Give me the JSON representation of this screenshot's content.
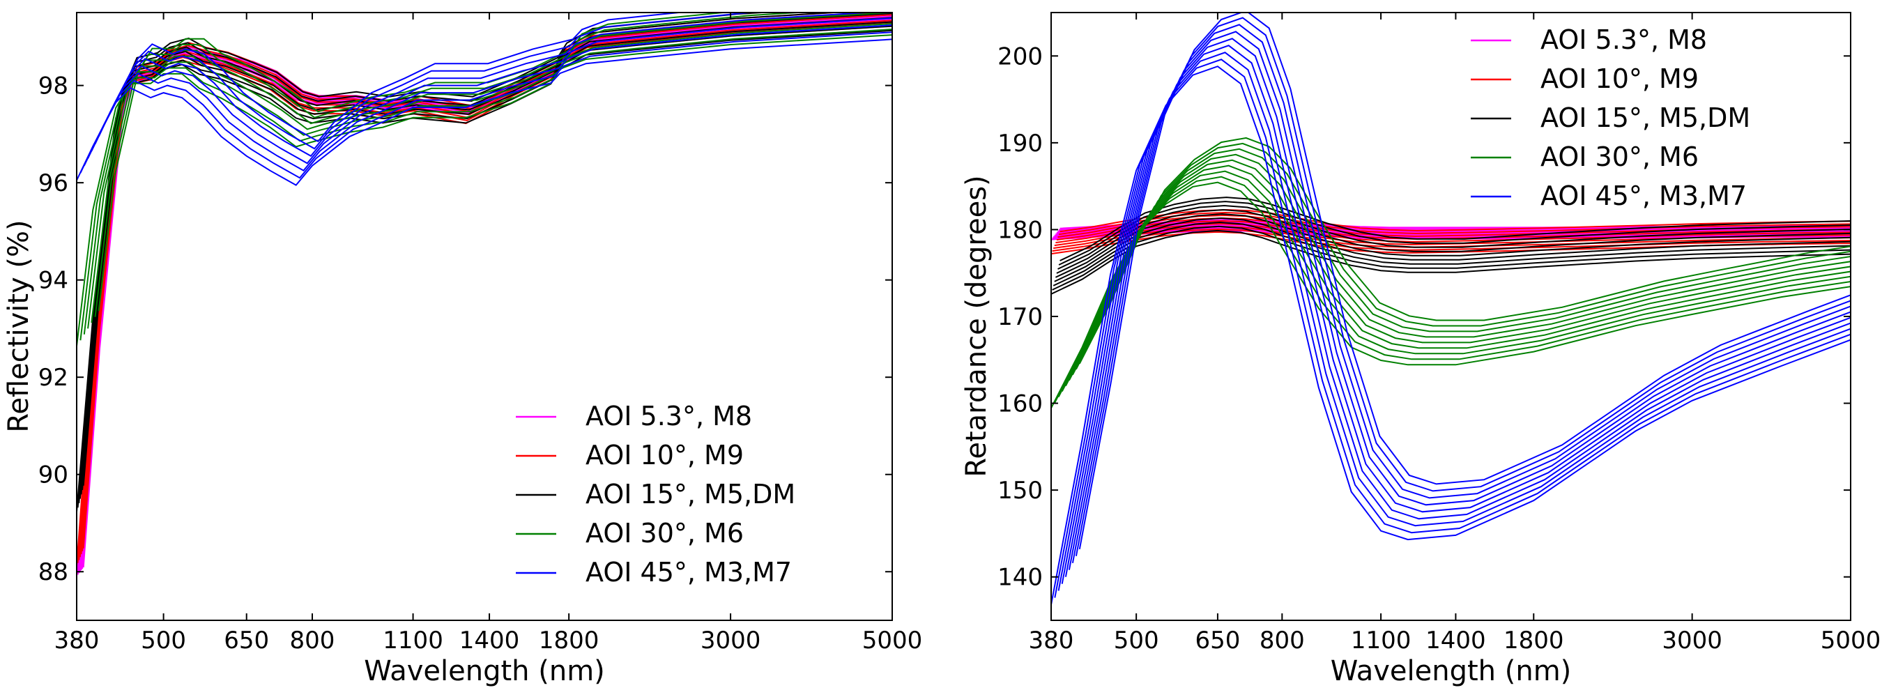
{
  "chart_data": [
    {
      "type": "line",
      "id": "reflectivity",
      "title": "",
      "xlabel": "Wavelength (nm)",
      "ylabel": "Reflectivity (%)",
      "xscale": "log",
      "xlim": [
        380,
        5000
      ],
      "ylim": [
        87,
        99.5
      ],
      "xticks": [
        380,
        500,
        650,
        800,
        1100,
        1400,
        1800,
        3000,
        5000
      ],
      "xtick_labels": [
        "380",
        "500",
        "650",
        "800",
        "1100",
        "1400",
        "1800",
        "3000",
        "5000"
      ],
      "yticks": [
        88,
        90,
        92,
        94,
        96,
        98
      ],
      "ytick_labels": [
        "88",
        "90",
        "92",
        "94",
        "96",
        "98"
      ],
      "grid": false,
      "legend_position": "bottom-right",
      "x": [
        380,
        400,
        430,
        450,
        480,
        500,
        530,
        560,
        600,
        650,
        700,
        760,
        800,
        900,
        1000,
        1100,
        1300,
        1500,
        1700,
        1750,
        1900,
        2200,
        3000,
        5000
      ],
      "series": [
        {
          "name": "AOI 5.3°, M8",
          "color": "#ff00ff",
          "values": [
            88.0,
            92.5,
            97.3,
            98.2,
            98.2,
            98.6,
            98.7,
            98.6,
            98.5,
            98.4,
            98.2,
            97.8,
            97.7,
            97.7,
            97.6,
            97.6,
            97.5,
            97.9,
            98.3,
            98.6,
            98.9,
            99.0,
            99.2,
            99.4
          ]
        },
        {
          "name": "AOI 10°, M9",
          "color": "#ff0000",
          "values": [
            88.3,
            92.8,
            97.4,
            98.2,
            98.3,
            98.6,
            98.7,
            98.6,
            98.5,
            98.3,
            98.1,
            97.7,
            97.6,
            97.6,
            97.5,
            97.6,
            97.4,
            97.9,
            98.3,
            98.6,
            98.9,
            99.0,
            99.2,
            99.4
          ]
        },
        {
          "name": "AOI 15°, M5,DM",
          "color": "#000000",
          "values": [
            89.5,
            93.5,
            97.6,
            98.3,
            98.4,
            98.6,
            98.7,
            98.5,
            98.4,
            98.2,
            98.0,
            97.6,
            97.5,
            97.6,
            97.5,
            97.6,
            97.5,
            97.9,
            98.3,
            98.6,
            98.9,
            99.0,
            99.2,
            99.4
          ]
        },
        {
          "name": "AOI 30°, M6",
          "color": "#008000",
          "values": [
            93.0,
            95.8,
            97.9,
            98.4,
            98.4,
            98.6,
            98.6,
            98.3,
            98.1,
            97.8,
            97.5,
            97.1,
            97.2,
            97.4,
            97.5,
            97.7,
            97.7,
            98.0,
            98.4,
            98.7,
            98.9,
            99.0,
            99.2,
            99.4
          ]
        },
        {
          "name": "AOI 45°, M3,M7",
          "color": "#0000ff",
          "values": [
            96.5,
            97.2,
            98.1,
            98.4,
            98.2,
            98.3,
            98.2,
            97.9,
            97.4,
            97.0,
            96.7,
            96.4,
            96.8,
            97.4,
            97.7,
            98.0,
            98.0,
            98.3,
            98.5,
            98.7,
            98.9,
            99.0,
            99.2,
            99.4
          ]
        }
      ]
    },
    {
      "type": "line",
      "id": "retardance",
      "title": "",
      "xlabel": "Wavelength (nm)",
      "ylabel": "Retardance (degrees)",
      "xscale": "log",
      "xlim": [
        380,
        5000
      ],
      "ylim": [
        135,
        205
      ],
      "xticks": [
        380,
        500,
        650,
        800,
        1100,
        1400,
        1800,
        3000,
        5000
      ],
      "xtick_labels": [
        "380",
        "500",
        "650",
        "800",
        "1100",
        "1400",
        "1800",
        "3000",
        "5000"
      ],
      "yticks": [
        140,
        150,
        160,
        170,
        180,
        190,
        200
      ],
      "ytick_labels": [
        "140",
        "150",
        "160",
        "170",
        "180",
        "190",
        "200"
      ],
      "grid": false,
      "legend_position": "top-right",
      "x": [
        380,
        420,
        460,
        500,
        550,
        600,
        650,
        700,
        750,
        800,
        900,
        1000,
        1100,
        1200,
        1400,
        1800,
        2500,
        3000,
        4000,
        5000
      ],
      "series": [
        {
          "name": "AOI 5.3°, M8",
          "color": "#ff00ff",
          "values": [
            179.5,
            179.7,
            179.9,
            180.1,
            180.3,
            180.4,
            180.5,
            180.5,
            180.4,
            180.2,
            179.9,
            179.7,
            179.6,
            179.6,
            179.6,
            179.6,
            179.7,
            179.7,
            179.8,
            179.8
          ]
        },
        {
          "name": "AOI 10°, M9",
          "color": "#ff0000",
          "values": [
            178.5,
            179.0,
            179.6,
            180.1,
            180.6,
            180.9,
            181.0,
            180.9,
            180.6,
            180.2,
            179.4,
            178.9,
            178.7,
            178.6,
            178.7,
            178.9,
            179.2,
            179.4,
            179.6,
            179.7
          ]
        },
        {
          "name": "AOI 15°, M5,DM",
          "color": "#000000",
          "values": [
            174.5,
            176.2,
            178.3,
            180.0,
            181.0,
            181.6,
            181.8,
            181.6,
            181.0,
            180.2,
            178.8,
            177.8,
            177.2,
            177.0,
            177.0,
            177.6,
            178.3,
            178.6,
            178.9,
            179.1
          ]
        },
        {
          "name": "AOI 30°, M6",
          "color": "#008000",
          "values": [
            162.0,
            169.0,
            176.5,
            182.0,
            185.5,
            187.5,
            188.0,
            187.0,
            184.5,
            180.5,
            173.5,
            169.0,
            167.5,
            167.0,
            167.0,
            168.5,
            171.5,
            172.8,
            174.8,
            176.0
          ]
        },
        {
          "name": "AOI 45°, M3,M7",
          "color": "#0000ff",
          "values": [
            140.0,
            159.0,
            178.0,
            190.0,
            197.5,
            201.0,
            202.0,
            200.0,
            193.0,
            183.0,
            165.0,
            153.0,
            148.5,
            147.5,
            148.0,
            152.0,
            160.0,
            163.5,
            167.5,
            170.5
          ]
        }
      ]
    }
  ]
}
